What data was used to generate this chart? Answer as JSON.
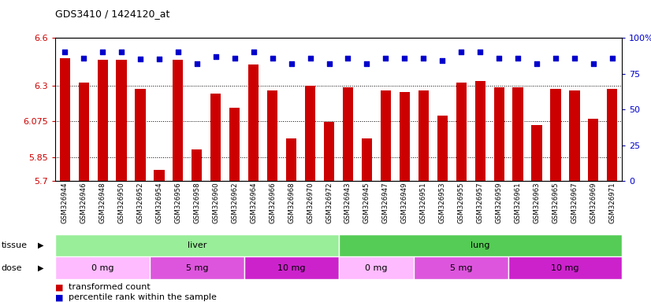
{
  "title": "GDS3410 / 1424120_at",
  "samples": [
    "GSM326944",
    "GSM326946",
    "GSM326948",
    "GSM326950",
    "GSM326952",
    "GSM326954",
    "GSM326956",
    "GSM326958",
    "GSM326960",
    "GSM326962",
    "GSM326964",
    "GSM326966",
    "GSM326968",
    "GSM326970",
    "GSM326972",
    "GSM326943",
    "GSM326945",
    "GSM326947",
    "GSM326949",
    "GSM326951",
    "GSM326953",
    "GSM326955",
    "GSM326957",
    "GSM326959",
    "GSM326961",
    "GSM326963",
    "GSM326965",
    "GSM326967",
    "GSM326969",
    "GSM326971"
  ],
  "bar_values": [
    6.47,
    6.32,
    6.46,
    6.46,
    6.28,
    5.77,
    6.46,
    5.9,
    6.25,
    6.16,
    6.43,
    6.27,
    5.97,
    6.3,
    6.07,
    6.29,
    5.97,
    6.27,
    6.26,
    6.27,
    6.11,
    6.32,
    6.33,
    6.29,
    6.29,
    6.05,
    6.28,
    6.27,
    6.09,
    6.28
  ],
  "percentile_values": [
    90,
    86,
    90,
    90,
    85,
    85,
    90,
    82,
    87,
    86,
    90,
    86,
    82,
    86,
    82,
    86,
    82,
    86,
    86,
    86,
    84,
    90,
    90,
    86,
    86,
    82,
    86,
    86,
    82,
    86
  ],
  "ymin": 5.7,
  "ymax": 6.6,
  "yticks": [
    5.7,
    5.85,
    6.075,
    6.3,
    6.6
  ],
  "ytick_labels": [
    "5.7",
    "5.85",
    "6.075",
    "6.3",
    "6.6"
  ],
  "right_yticks": [
    0,
    25,
    50,
    75,
    100
  ],
  "right_ytick_labels": [
    "0",
    "25",
    "50",
    "75",
    "100%"
  ],
  "bar_color": "#cc0000",
  "dot_color": "#0000cc",
  "tissue_label": "tissue",
  "dose_label": "dose",
  "tissue_groups": [
    {
      "label": "liver",
      "start": 0,
      "end": 15,
      "color": "#99ee99"
    },
    {
      "label": "lung",
      "start": 15,
      "end": 30,
      "color": "#55cc55"
    }
  ],
  "dose_groups": [
    {
      "label": "0 mg",
      "start": 0,
      "end": 5,
      "color": "#ffbbff"
    },
    {
      "label": "5 mg",
      "start": 5,
      "end": 10,
      "color": "#dd55dd"
    },
    {
      "label": "10 mg",
      "start": 10,
      "end": 15,
      "color": "#cc22cc"
    },
    {
      "label": "0 mg",
      "start": 15,
      "end": 19,
      "color": "#ffbbff"
    },
    {
      "label": "5 mg",
      "start": 19,
      "end": 24,
      "color": "#dd55dd"
    },
    {
      "label": "10 mg",
      "start": 24,
      "end": 30,
      "color": "#cc22cc"
    }
  ],
  "legend_items": [
    {
      "label": "transformed count",
      "color": "#cc0000"
    },
    {
      "label": "percentile rank within the sample",
      "color": "#0000cc"
    }
  ]
}
